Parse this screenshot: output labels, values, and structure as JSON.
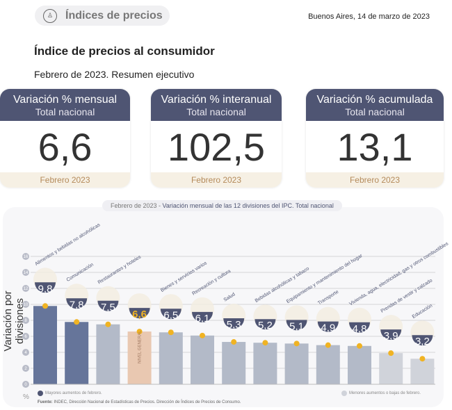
{
  "header": {
    "section": "Índices de precios",
    "date": "Buenos Aires, 14 de marzo de 2023",
    "title": "Índice de precios al consumidor",
    "subtitle": "Febrero de 2023. Resumen ejecutivo"
  },
  "cards": [
    {
      "title": "Variación % mensual",
      "scope": "Total nacional",
      "value": "6,6",
      "period": "Febrero 2023"
    },
    {
      "title": "Variación % interanual",
      "scope": "Total nacional",
      "value": "102,5",
      "period": "Febrero 2023"
    },
    {
      "title": "Variación % acumulada",
      "scope": "Total nacional",
      "value": "13,1",
      "period": "Febrero 2023"
    }
  ],
  "colors": {
    "header": "#4f5573",
    "major": "#66759a",
    "middle": "#b3bac8",
    "minor": "#d0d3da",
    "general": "#e9c8b1",
    "dot": "#f0b323",
    "label_general": "#f0b323"
  },
  "chart_data": {
    "type": "bar",
    "title_period": "Febrero de 2023",
    "title": "Variación mensual de las 12 divisiones del IPC. Total nacional",
    "ylabel": "Variación por divisiones",
    "yunit": "%",
    "ylim": [
      0,
      16
    ],
    "yticks": [
      0,
      2,
      4,
      6,
      8,
      10,
      12,
      14,
      16
    ],
    "grid": true,
    "categories": [
      "Alimentos y bebidas no alcohólicas",
      "Comunicación",
      "Restaurantes y hoteles",
      "Nivel general",
      "Bienes y servicios varios",
      "Recreación y cultura",
      "Salud",
      "Bebidas alcohólicas y tabaco",
      "Equipamiento y mantenimiento del hogar",
      "Transporte",
      "Vivienda, agua, electricidad, gas y otros combustibles",
      "Prendas de vestir y calzado",
      "Educación"
    ],
    "values": [
      9.8,
      7.8,
      7.5,
      6.6,
      6.5,
      6.1,
      5.3,
      5.2,
      5.1,
      4.9,
      4.8,
      3.9,
      3.2
    ],
    "value_labels": [
      "9,8",
      "7,8",
      "7,5",
      "6,6",
      "6,5",
      "6,1",
      "5,3",
      "5,2",
      "5,1",
      "4,9",
      "4,8",
      "3,9",
      "3,2"
    ],
    "groups": [
      "major",
      "major",
      "middle",
      "general",
      "middle",
      "middle",
      "middle",
      "middle",
      "middle",
      "middle",
      "middle",
      "minor",
      "minor"
    ],
    "general_bar_label": "NIVEL GENERAL",
    "legend": {
      "major": "Mayores aumentos de febrero.",
      "minor": "Menores aumentos o bajas de febrero."
    },
    "source_label": "Fuente:",
    "source": "INDEC, Dirección Nacional de Estadísticas de Precios. Dirección de Índices de Precios de Consumo."
  }
}
